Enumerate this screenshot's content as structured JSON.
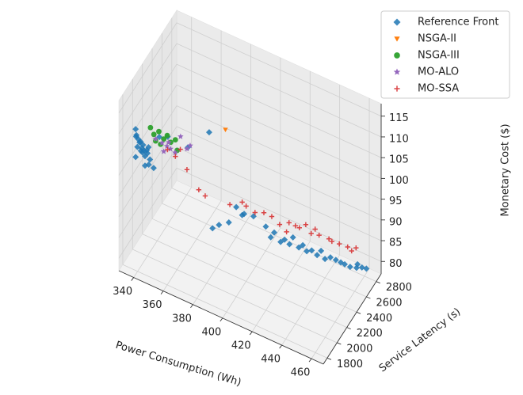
{
  "chart_data": {
    "type": "scatter",
    "projection": "3d",
    "grid": true,
    "legend_position": "top-right",
    "axes": {
      "x": {
        "label": "Power Consumption (Wh)",
        "ticks": [
          340,
          360,
          380,
          400,
          420,
          440,
          460
        ],
        "tick_labels": [
          "340",
          "360",
          "380",
          "400",
          "420",
          "440",
          "460"
        ],
        "range": [
          330,
          468
        ]
      },
      "y": {
        "label": "Service Latency (s)",
        "ticks": [
          1800,
          2000,
          2200,
          2400,
          2600,
          2800
        ],
        "tick_labels": [
          "1800",
          "2000",
          "2200",
          "2400",
          "2600",
          "2800"
        ],
        "range": [
          1720,
          2900
        ]
      },
      "z": {
        "label": "Monetary Cost ($)",
        "ticks": [
          80,
          85,
          90,
          95,
          100,
          105,
          110,
          115
        ],
        "tick_labels": [
          "80",
          "85",
          "90",
          "95",
          "100",
          "105",
          "110",
          "115"
        ],
        "range": [
          77,
          118
        ]
      }
    },
    "series": [
      {
        "name": "Reference Front",
        "marker": "diamond",
        "color": "#1f77b4",
        "points": [
          [
            340,
            1760,
            112
          ],
          [
            341,
            1745,
            111
          ],
          [
            342,
            1755,
            110
          ],
          [
            340,
            1770,
            110
          ],
          [
            343,
            1750,
            109.5
          ],
          [
            344,
            1740,
            110
          ],
          [
            345,
            1760,
            109
          ],
          [
            342,
            1735,
            108.5
          ],
          [
            346,
            1750,
            108
          ],
          [
            348,
            1760,
            107.5
          ],
          [
            347,
            1740,
            107
          ],
          [
            350,
            1750,
            106.5
          ],
          [
            344,
            1765,
            108
          ],
          [
            343,
            1775,
            107
          ],
          [
            345,
            1745,
            107.5
          ],
          [
            349,
            1755,
            105
          ],
          [
            352,
            1765,
            104.5
          ],
          [
            341,
            1730,
            106
          ],
          [
            346,
            1770,
            104
          ],
          [
            348,
            1745,
            108.5
          ],
          [
            350,
            1720,
            110
          ],
          [
            355,
            1790,
            112
          ],
          [
            360,
            1810,
            112.5
          ],
          [
            385,
            1900,
            116
          ],
          [
            372,
            1860,
            111
          ],
          [
            395,
            2150,
            95
          ],
          [
            398,
            2180,
            93
          ],
          [
            400,
            2160,
            94
          ],
          [
            405,
            2200,
            93.5
          ],
          [
            385,
            2100,
            90
          ],
          [
            390,
            2150,
            90.5
          ],
          [
            380,
            2120,
            88
          ],
          [
            410,
            2300,
            90
          ],
          [
            415,
            2320,
            89
          ],
          [
            420,
            2380,
            87
          ],
          [
            425,
            2400,
            88
          ],
          [
            430,
            2450,
            86
          ],
          [
            428,
            2430,
            85.5
          ],
          [
            435,
            2480,
            85
          ],
          [
            440,
            2520,
            85
          ],
          [
            438,
            2500,
            84
          ],
          [
            445,
            2560,
            83.5
          ],
          [
            448,
            2580,
            83
          ],
          [
            450,
            2620,
            82
          ],
          [
            452,
            2640,
            81.5
          ],
          [
            455,
            2660,
            81
          ],
          [
            458,
            2700,
            80.5
          ],
          [
            460,
            2750,
            80
          ],
          [
            462,
            2780,
            79.5
          ],
          [
            412,
            2340,
            87
          ],
          [
            418,
            2360,
            86.5
          ],
          [
            422,
            2420,
            85.5
          ],
          [
            432,
            2470,
            84.5
          ],
          [
            442,
            2540,
            83
          ],
          [
            458,
            2720,
            81
          ]
        ]
      },
      {
        "name": "NSGA-II",
        "marker": "triangle-down",
        "color": "#ff7f0e",
        "points": [
          [
            394,
            1960,
            117
          ]
        ]
      },
      {
        "name": "NSGA-III",
        "marker": "circle",
        "color": "#2ca02c",
        "points": [
          [
            352,
            1770,
            112.5
          ],
          [
            355,
            1780,
            113.5
          ],
          [
            358,
            1790,
            112
          ],
          [
            360,
            1800,
            113
          ],
          [
            350,
            1760,
            114
          ],
          [
            362,
            1810,
            111.5
          ],
          [
            365,
            1815,
            112.5
          ],
          [
            356,
            1785,
            110.5
          ],
          [
            353,
            1775,
            111
          ],
          [
            366,
            1820,
            110
          ]
        ]
      },
      {
        "name": "MO-ALO",
        "marker": "star",
        "color": "#9467bd",
        "points": [
          [
            353,
            1775,
            111.5
          ],
          [
            357,
            1785,
            111
          ],
          [
            360,
            1795,
            110.5
          ],
          [
            362,
            1805,
            110
          ],
          [
            365,
            1810,
            109.5
          ],
          [
            368,
            1830,
            113.5
          ],
          [
            372,
            1840,
            111
          ],
          [
            374,
            1845,
            112
          ],
          [
            358,
            1790,
            109
          ],
          [
            361,
            1800,
            111.5
          ]
        ]
      },
      {
        "name": "MO-SSA",
        "marker": "plus",
        "color": "#d62728",
        "points": [
          [
            360,
            1805,
            109.5
          ],
          [
            365,
            1815,
            108.5
          ],
          [
            368,
            1825,
            110.5
          ],
          [
            372,
            1840,
            106
          ],
          [
            378,
            1900,
            101
          ],
          [
            382,
            1910,
            100
          ],
          [
            395,
            2020,
            98
          ],
          [
            402,
            2060,
            99
          ],
          [
            404,
            2080,
            98
          ],
          [
            408,
            2140,
            96
          ],
          [
            412,
            2200,
            95.5
          ],
          [
            416,
            2240,
            94.5
          ],
          [
            420,
            2280,
            92.5
          ],
          [
            425,
            2320,
            93
          ],
          [
            428,
            2360,
            92
          ],
          [
            430,
            2380,
            91.5
          ],
          [
            433,
            2420,
            92
          ],
          [
            436,
            2440,
            90
          ],
          [
            440,
            2480,
            89.5
          ],
          [
            445,
            2530,
            88.5
          ],
          [
            450,
            2590,
            87
          ],
          [
            454,
            2640,
            86
          ],
          [
            456,
            2660,
            85
          ],
          [
            458,
            2690,
            85.5
          ],
          [
            446,
            2560,
            87.5
          ],
          [
            424,
            2300,
            91
          ],
          [
            438,
            2460,
            91
          ]
        ]
      }
    ]
  }
}
